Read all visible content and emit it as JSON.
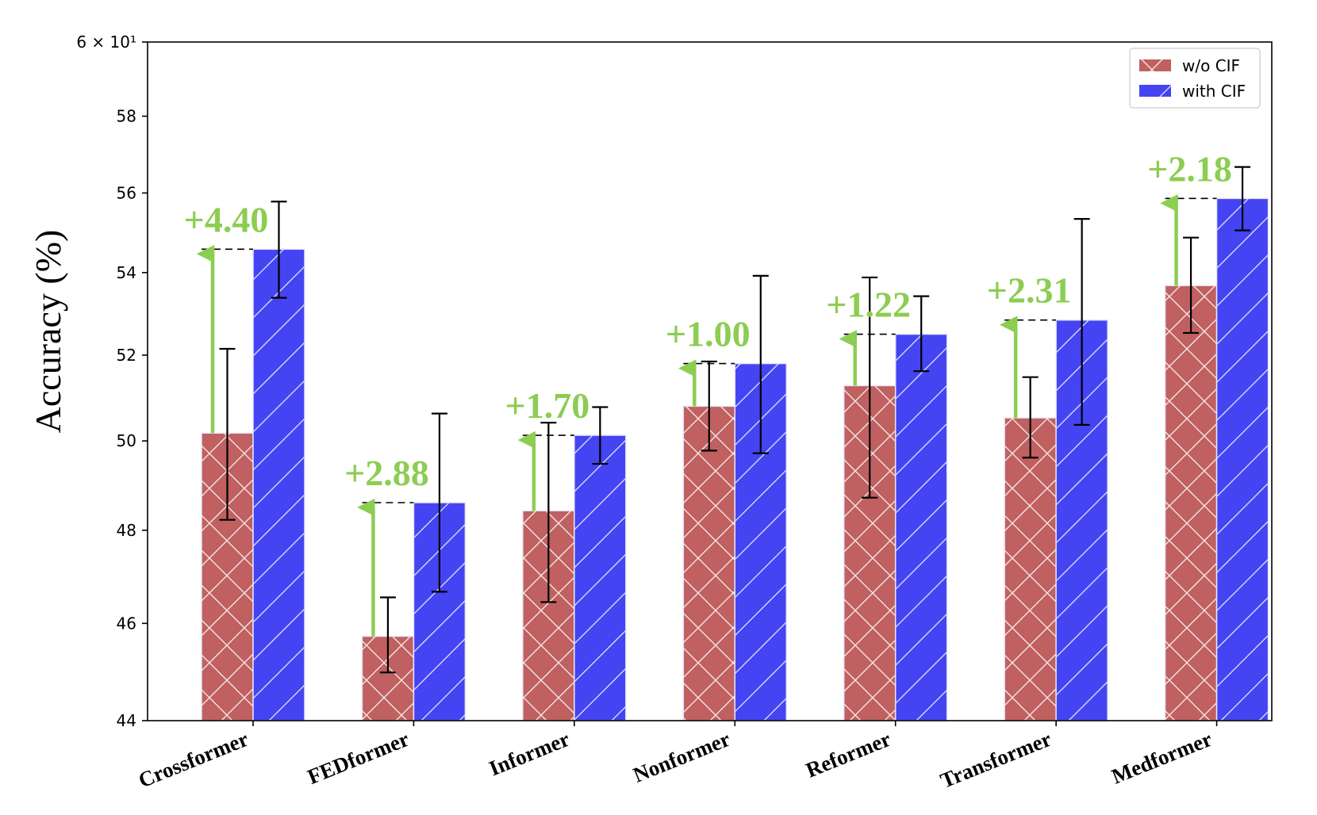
{
  "chart_data": {
    "type": "bar",
    "ylabel": "Accuracy (%)",
    "xlabel": "",
    "yscale": "log",
    "ylim": [
      44,
      60
    ],
    "ytick_values": [
      44,
      46,
      48,
      50,
      52,
      54,
      56,
      58,
      60
    ],
    "ytick_labels": [
      "44",
      "46",
      "48",
      "50",
      "52",
      "54",
      "56",
      "58",
      "6 × 10¹"
    ],
    "categories": [
      "Crossformer",
      "FEDformer",
      "Informer",
      "Nonformer",
      "Reformer",
      "Transformer",
      "Medformer"
    ],
    "series": [
      {
        "name": "w/o CIF",
        "color": "#c06060",
        "hatch": "crosshatch",
        "values": [
          50.18,
          45.73,
          48.43,
          50.8,
          51.28,
          50.53,
          53.68
        ],
        "error": [
          [
            48.23,
            52.15
          ],
          [
            44.98,
            46.55
          ],
          [
            46.45,
            50.42
          ],
          [
            49.78,
            51.85
          ],
          [
            48.72,
            53.88
          ],
          [
            49.62,
            51.48
          ],
          [
            52.53,
            54.87
          ]
        ]
      },
      {
        "name": "with CIF",
        "color": "#4444f2",
        "hatch": "diagonal",
        "values": [
          54.58,
          48.61,
          50.13,
          51.8,
          52.5,
          52.84,
          55.86
        ],
        "error": [
          [
            53.38,
            55.78
          ],
          [
            46.67,
            50.63
          ],
          [
            49.48,
            50.78
          ],
          [
            49.72,
            53.92
          ],
          [
            51.62,
            53.42
          ],
          [
            50.37,
            55.34
          ],
          [
            55.05,
            56.67
          ]
        ]
      }
    ],
    "annotations": [
      "+4.40",
      "+2.88",
      "+1.70",
      "+1.00",
      "+1.22",
      "+2.31",
      "+2.18"
    ],
    "annotation_color": "#8ccd52",
    "legend": {
      "position": "top-right",
      "entries": [
        "w/o CIF",
        "with CIF"
      ]
    }
  }
}
